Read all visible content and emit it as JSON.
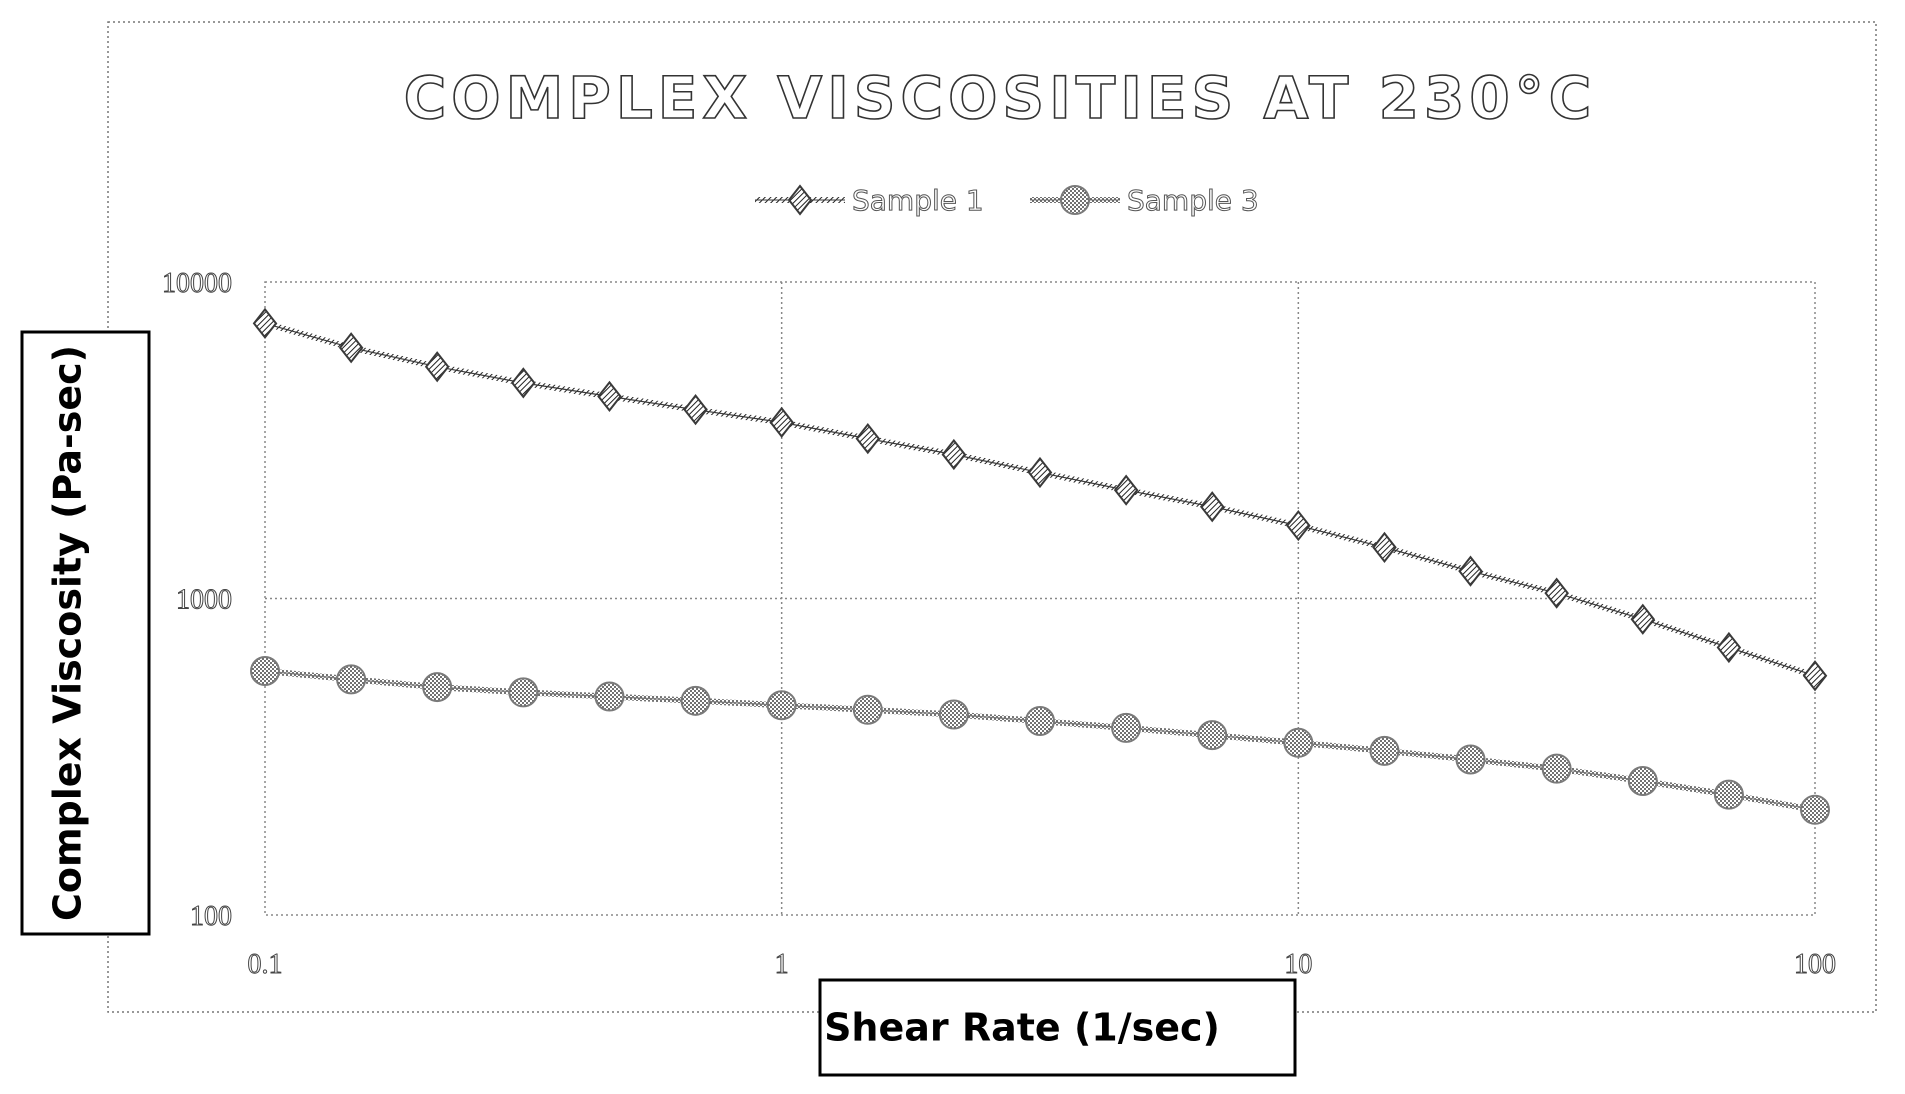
{
  "chart_data": {
    "type": "line",
    "title": "COMPLEX VISCOSITIES AT 230°C",
    "xlabel": "Shear Rate (1/sec)",
    "ylabel": "Complex Viscosity (Pa-sec)",
    "x_scale": "log",
    "y_scale": "log",
    "xlim": [
      0.1,
      100
    ],
    "ylim": [
      100,
      10000
    ],
    "x_ticks": [
      "0.1",
      "1",
      "10",
      "100"
    ],
    "y_ticks": [
      "10000",
      "1000",
      "100"
    ],
    "grid": true,
    "legend_position": "top-center",
    "x": [
      0.1,
      0.1468,
      0.2154,
      0.3162,
      0.4642,
      0.6813,
      1,
      1.468,
      2.154,
      3.162,
      4.642,
      6.813,
      10,
      14.68,
      21.54,
      31.62,
      46.42,
      68.13,
      100
    ],
    "series": [
      {
        "name": "Sample 1",
        "marker": "diamond",
        "color": "#3a3a3a",
        "values": [
          7400,
          6200,
          5400,
          4800,
          4350,
          3950,
          3600,
          3200,
          2850,
          2500,
          2200,
          1950,
          1700,
          1450,
          1220,
          1040,
          860,
          700,
          570
        ]
      },
      {
        "name": "Sample 3",
        "marker": "circle",
        "color": "#7a7a7a",
        "values": [
          590,
          555,
          525,
          505,
          490,
          475,
          460,
          445,
          430,
          410,
          390,
          370,
          350,
          330,
          310,
          290,
          265,
          240,
          215
        ]
      }
    ]
  }
}
